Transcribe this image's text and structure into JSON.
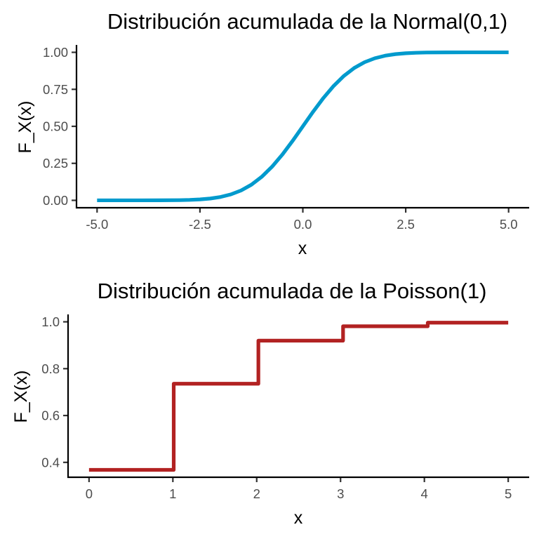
{
  "chart_data": [
    {
      "type": "line",
      "title": "Distribución acumulada de la Normal(0,1)",
      "xlabel": "x",
      "ylabel": "F_X(x)",
      "xlim": [
        -5.5,
        5.5
      ],
      "ylim": [
        -0.05,
        1.05
      ],
      "xticks": [
        -5,
        -2.5,
        0,
        2.5,
        5
      ],
      "xtick_labels": [
        "-5.0",
        "-2.5",
        "0.0",
        "2.5",
        "5.0"
      ],
      "yticks": [
        0,
        0.25,
        0.5,
        0.75,
        1
      ],
      "ytick_labels": [
        "0.00",
        "0.25",
        "0.50",
        "0.75",
        "1.00"
      ],
      "grid": false,
      "color": "#009ACD",
      "series": [
        {
          "x": [
            -5,
            -4.5,
            -4,
            -3.5,
            -3,
            -2.75,
            -2.5,
            -2.25,
            -2,
            -1.75,
            -1.5,
            -1.25,
            -1,
            -0.75,
            -0.5,
            -0.25,
            0,
            0.25,
            0.5,
            0.75,
            1,
            1.25,
            1.5,
            1.75,
            2,
            2.25,
            2.5,
            2.75,
            3,
            3.5,
            4,
            4.5,
            5
          ],
          "values": [
            3e-07,
            3.4e-06,
            3.17e-05,
            0.000233,
            0.00135,
            0.00298,
            0.00621,
            0.01222,
            0.02275,
            0.04006,
            0.0668,
            0.10565,
            0.15866,
            0.22663,
            0.30854,
            0.40129,
            0.5,
            0.59871,
            0.69146,
            0.77337,
            0.84134,
            0.89435,
            0.9332,
            0.95994,
            0.97725,
            0.98778,
            0.99379,
            0.99702,
            0.99865,
            0.99977,
            0.99997,
            0.999997,
            0.9999997
          ]
        }
      ]
    },
    {
      "type": "line",
      "title": "Distribución acumulada de la Poisson(1)",
      "xlabel": "x",
      "ylabel": "F_X(x)",
      "xlim": [
        -0.25,
        5.25
      ],
      "ylim": [
        0.3365,
        1.0316
      ],
      "xticks": [
        0,
        1,
        2,
        3,
        4,
        5
      ],
      "xtick_labels": [
        "0",
        "1",
        "2",
        "3",
        "4",
        "5"
      ],
      "yticks": [
        0.4,
        0.6,
        0.8,
        1.0
      ],
      "ytick_labels": [
        "0.4",
        "0.6",
        "0.8",
        "1.0"
      ],
      "grid": false,
      "color": "#B22222",
      "series": [
        {
          "x": [
            0,
            1.01,
            1.01,
            2.02,
            2.02,
            3.03,
            3.03,
            4.04,
            4.04,
            5.0
          ],
          "values": [
            0.3679,
            0.3679,
            0.7358,
            0.7358,
            0.9197,
            0.9197,
            0.981,
            0.981,
            0.9963,
            0.9963
          ]
        }
      ]
    }
  ]
}
